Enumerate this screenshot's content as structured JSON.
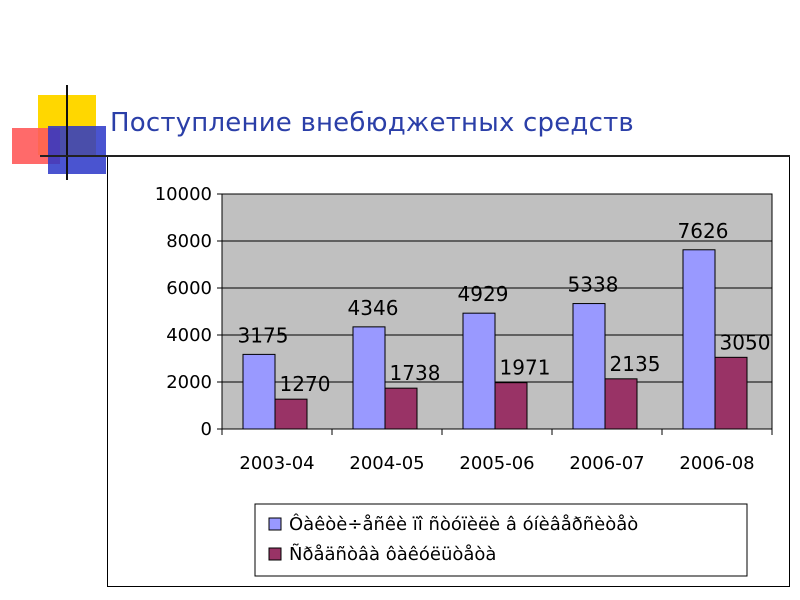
{
  "slide": {
    "title": "Поступление внебюджетных средств"
  },
  "colors": {
    "title": "#2b3fa8",
    "plot_bg": "#c0c0c0",
    "series_1": "#9999ff",
    "series_2": "#993366",
    "deco_yellow": "#ffd700",
    "deco_red": "#ff4a4a",
    "deco_blue": "#2a36c8"
  },
  "chart_data": {
    "type": "bar",
    "title": "",
    "xlabel": "",
    "ylabel": "",
    "categories": [
      "2003-04",
      "2004-05",
      "2005-06",
      "2006-07",
      "2006-08"
    ],
    "series": [
      {
        "name": "Ôàêòè÷åñêè ïî ñòóïèëè â óíèâåðñèòåò",
        "values": [
          3175,
          4346,
          4929,
          5338,
          7626
        ]
      },
      {
        "name": "Ñðåäñòâà ôàêóëüòåòà",
        "values": [
          1270,
          1738,
          1971,
          2135,
          3050
        ]
      }
    ],
    "ylim": [
      0,
      10000
    ],
    "yticks": [
      0,
      2000,
      4000,
      6000,
      8000,
      10000
    ],
    "grid": true,
    "legend_position": "bottom",
    "data_labels": true
  }
}
